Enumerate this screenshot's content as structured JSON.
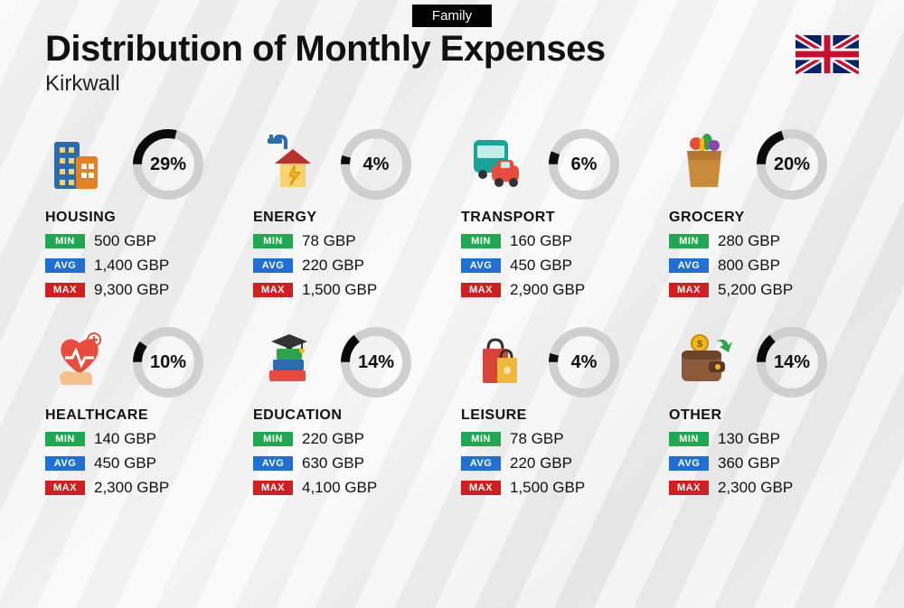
{
  "tag_label": "Family",
  "title": "Distribution of Monthly Expenses",
  "subtitle": "Kirkwall",
  "flag": {
    "bg": "#012169",
    "red": "#C8102E",
    "white": "#ffffff"
  },
  "donut": {
    "stroke_width": 10,
    "bg_color": "#cfcfcf",
    "fg_color": "#0a0a0a",
    "radius": 34
  },
  "badge_labels": {
    "min": "MIN",
    "avg": "AVG",
    "max": "MAX"
  },
  "badge_colors": {
    "min": "#1fa94e",
    "avg": "#1f6fd4",
    "max": "#d11e1e"
  },
  "currency_suffix": " GBP",
  "categories": [
    {
      "name": "HOUSING",
      "icon": "housing",
      "pct": 29,
      "pct_label": "29%",
      "min": "500",
      "avg": "1,400",
      "max": "9,300"
    },
    {
      "name": "ENERGY",
      "icon": "energy",
      "pct": 4,
      "pct_label": "4%",
      "min": "78",
      "avg": "220",
      "max": "1,500"
    },
    {
      "name": "TRANSPORT",
      "icon": "transport",
      "pct": 6,
      "pct_label": "6%",
      "min": "160",
      "avg": "450",
      "max": "2,900"
    },
    {
      "name": "GROCERY",
      "icon": "grocery",
      "pct": 20,
      "pct_label": "20%",
      "min": "280",
      "avg": "800",
      "max": "5,200"
    },
    {
      "name": "HEALTHCARE",
      "icon": "healthcare",
      "pct": 10,
      "pct_label": "10%",
      "min": "140",
      "avg": "450",
      "max": "2,300"
    },
    {
      "name": "EDUCATION",
      "icon": "education",
      "pct": 14,
      "pct_label": "14%",
      "min": "220",
      "avg": "630",
      "max": "4,100"
    },
    {
      "name": "LEISURE",
      "icon": "leisure",
      "pct": 4,
      "pct_label": "4%",
      "min": "78",
      "avg": "220",
      "max": "1,500"
    },
    {
      "name": "OTHER",
      "icon": "other",
      "pct": 14,
      "pct_label": "14%",
      "min": "130",
      "avg": "360",
      "max": "2,300"
    }
  ],
  "icons": {
    "housing": {
      "type": "buildings",
      "c1": "#2b6cb0",
      "c2": "#e67e22",
      "win": "#f8d36b"
    },
    "energy": {
      "type": "house-bolt",
      "roof": "#b83227",
      "wall": "#f6d36b",
      "bolt": "#f7b71d",
      "plug": "#2b6cb0"
    },
    "transport": {
      "type": "bus-car",
      "bus": "#17a59a",
      "car": "#e74c3c",
      "wheel": "#333"
    },
    "grocery": {
      "type": "bag-veggies",
      "bag": "#c98a3a",
      "g1": "#2ea34a",
      "g2": "#e74c3c",
      "g3": "#f7b71d",
      "g4": "#8e44ad"
    },
    "healthcare": {
      "type": "heart-hand",
      "heart": "#e74c3c",
      "hand": "#f5c089",
      "plus": "#e74c3c",
      "line": "#fff"
    },
    "education": {
      "type": "books-cap",
      "b1": "#2ea34a",
      "b2": "#2b6cb0",
      "b3": "#e74c3c",
      "cap": "#333"
    },
    "leisure": {
      "type": "shopping-bags",
      "bag1": "#d9443a",
      "bag2": "#f0b93a",
      "handle": "#333"
    },
    "other": {
      "type": "wallet-arrow",
      "wallet": "#8a5a3a",
      "coin": "#f7b71d",
      "arrow": "#2ea34a"
    }
  }
}
